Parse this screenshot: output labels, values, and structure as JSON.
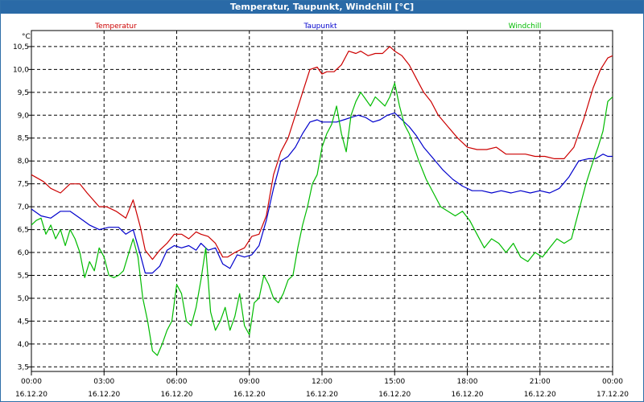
{
  "window": {
    "title": "Temperatur, Taupunkt, Windchill [°C]"
  },
  "chart_data": {
    "type": "line",
    "title": "Temperatur, Taupunkt, Windchill [°C]",
    "ylabel": "°C",
    "ylim": [
      3.4,
      10.85
    ],
    "xlim": [
      0,
      24
    ],
    "yticks": [
      "3.5",
      "4.0",
      "4.5",
      "5.0",
      "5.5",
      "6.0",
      "6.5",
      "7.0",
      "7.5",
      "8.0",
      "8.5",
      "9.0",
      "9.5",
      "10.0",
      "10.5"
    ],
    "xticks": [
      {
        "x": 0,
        "time": "00:00",
        "date": "16.12.20"
      },
      {
        "x": 3,
        "time": "03:00",
        "date": "16.12.20"
      },
      {
        "x": 6,
        "time": "06:00",
        "date": "16.12.20"
      },
      {
        "x": 9,
        "time": "09:00",
        "date": "16.12.20"
      },
      {
        "x": 12,
        "time": "12:00",
        "date": "16.12.20"
      },
      {
        "x": 15,
        "time": "15:00",
        "date": "16.12.20"
      },
      {
        "x": 18,
        "time": "18:00",
        "date": "16.12.20"
      },
      {
        "x": 21,
        "time": "21:00",
        "date": "16.12.20"
      },
      {
        "x": 24,
        "time": "00:00",
        "date": "17.12.20"
      }
    ],
    "grid": true,
    "series": [
      {
        "name": "Temperatur",
        "color": "#cc0000",
        "x": [
          0,
          0.5,
          0.8,
          1.2,
          1.6,
          2.0,
          2.3,
          2.8,
          3.1,
          3.5,
          3.9,
          4.2,
          4.5,
          4.7,
          5.0,
          5.3,
          5.6,
          5.9,
          6.2,
          6.5,
          6.8,
          7.0,
          7.3,
          7.6,
          7.9,
          8.1,
          8.4,
          8.8,
          9.1,
          9.4,
          9.7,
          10.0,
          10.3,
          10.6,
          10.9,
          11.2,
          11.5,
          11.8,
          12.0,
          12.2,
          12.5,
          12.8,
          13.1,
          13.4,
          13.6,
          13.9,
          14.2,
          14.5,
          14.8,
          15.0,
          15.3,
          15.6,
          15.9,
          16.2,
          16.5,
          16.8,
          17.2,
          17.6,
          18.0,
          18.4,
          18.8,
          19.2,
          19.6,
          20.0,
          20.4,
          20.8,
          21.2,
          21.6,
          22.0,
          22.4,
          22.8,
          23.2,
          23.5,
          23.8,
          24.0
        ],
        "values": [
          7.7,
          7.55,
          7.4,
          7.3,
          7.5,
          7.5,
          7.3,
          7.0,
          7.0,
          6.9,
          6.75,
          7.15,
          6.55,
          6.05,
          5.85,
          6.05,
          6.2,
          6.4,
          6.4,
          6.3,
          6.45,
          6.4,
          6.35,
          6.2,
          5.9,
          5.9,
          6.0,
          6.1,
          6.35,
          6.4,
          6.8,
          7.7,
          8.2,
          8.5,
          9.0,
          9.5,
          10.0,
          10.05,
          9.9,
          9.95,
          9.95,
          10.1,
          10.4,
          10.35,
          10.4,
          10.3,
          10.35,
          10.35,
          10.5,
          10.4,
          10.3,
          10.1,
          9.8,
          9.5,
          9.3,
          9.0,
          8.75,
          8.5,
          8.3,
          8.25,
          8.25,
          8.3,
          8.15,
          8.15,
          8.15,
          8.1,
          8.1,
          8.05,
          8.05,
          8.3,
          8.9,
          9.6,
          10.0,
          10.25,
          10.3
        ]
      },
      {
        "name": "Taupunkt",
        "color": "#0000cc",
        "x": [
          0,
          0.4,
          0.8,
          1.2,
          1.6,
          2.0,
          2.4,
          2.8,
          3.2,
          3.6,
          3.9,
          4.2,
          4.5,
          4.7,
          5.0,
          5.3,
          5.6,
          5.9,
          6.2,
          6.5,
          6.8,
          7.0,
          7.3,
          7.6,
          7.9,
          8.2,
          8.5,
          8.8,
          9.1,
          9.4,
          9.7,
          10.0,
          10.3,
          10.6,
          10.9,
          11.2,
          11.5,
          11.8,
          12.0,
          12.3,
          12.6,
          12.9,
          13.2,
          13.5,
          13.8,
          14.1,
          14.4,
          14.7,
          15.0,
          15.3,
          15.6,
          15.9,
          16.2,
          16.6,
          17.0,
          17.4,
          17.8,
          18.2,
          18.6,
          19.0,
          19.4,
          19.8,
          20.2,
          20.6,
          21.0,
          21.4,
          21.8,
          22.2,
          22.6,
          23.0,
          23.3,
          23.6,
          23.8,
          24.0
        ],
        "values": [
          6.95,
          6.8,
          6.75,
          6.9,
          6.9,
          6.75,
          6.6,
          6.5,
          6.55,
          6.55,
          6.4,
          6.5,
          5.95,
          5.55,
          5.55,
          5.7,
          6.05,
          6.15,
          6.1,
          6.15,
          6.05,
          6.2,
          6.05,
          6.1,
          5.75,
          5.65,
          5.95,
          5.9,
          5.95,
          6.15,
          6.7,
          7.4,
          8.0,
          8.1,
          8.3,
          8.6,
          8.85,
          8.9,
          8.85,
          8.85,
          8.85,
          8.9,
          8.95,
          9.0,
          8.95,
          8.85,
          8.9,
          9.0,
          9.05,
          8.9,
          8.75,
          8.55,
          8.3,
          8.05,
          7.8,
          7.6,
          7.45,
          7.35,
          7.35,
          7.3,
          7.35,
          7.3,
          7.35,
          7.3,
          7.35,
          7.3,
          7.4,
          7.65,
          8.0,
          8.05,
          8.05,
          8.15,
          8.1,
          8.1
        ]
      },
      {
        "name": "Windchill",
        "color": "#00bb00",
        "x": [
          0,
          0.2,
          0.4,
          0.6,
          0.8,
          1.0,
          1.2,
          1.4,
          1.6,
          1.8,
          2.0,
          2.2,
          2.4,
          2.6,
          2.8,
          3.0,
          3.2,
          3.4,
          3.6,
          3.8,
          4.0,
          4.2,
          4.4,
          4.6,
          4.8,
          5.0,
          5.2,
          5.4,
          5.6,
          5.8,
          6.0,
          6.2,
          6.4,
          6.6,
          6.8,
          7.0,
          7.2,
          7.4,
          7.6,
          7.8,
          8.0,
          8.2,
          8.4,
          8.6,
          8.8,
          9.0,
          9.2,
          9.4,
          9.6,
          9.8,
          10.0,
          10.2,
          10.4,
          10.6,
          10.8,
          11.0,
          11.2,
          11.4,
          11.6,
          11.8,
          12.0,
          12.2,
          12.4,
          12.6,
          12.8,
          13.0,
          13.2,
          13.4,
          13.6,
          13.8,
          14.0,
          14.2,
          14.4,
          14.6,
          14.8,
          15.0,
          15.2,
          15.4,
          15.6,
          15.8,
          16.0,
          16.3,
          16.6,
          16.9,
          17.2,
          17.5,
          17.8,
          18.1,
          18.4,
          18.7,
          19.0,
          19.3,
          19.6,
          19.9,
          20.2,
          20.5,
          20.8,
          21.1,
          21.4,
          21.7,
          22.0,
          22.3,
          22.6,
          22.9,
          23.2,
          23.4,
          23.6,
          23.8,
          24.0
        ],
        "values": [
          6.6,
          6.7,
          6.75,
          6.4,
          6.6,
          6.3,
          6.5,
          6.15,
          6.5,
          6.3,
          6.0,
          5.45,
          5.8,
          5.6,
          6.1,
          5.9,
          5.5,
          5.45,
          5.5,
          5.6,
          5.95,
          6.3,
          5.9,
          5.0,
          4.5,
          3.85,
          3.75,
          4.0,
          4.3,
          4.5,
          5.3,
          5.1,
          4.5,
          4.4,
          4.8,
          5.4,
          6.1,
          4.7,
          4.3,
          4.5,
          4.8,
          4.3,
          4.6,
          5.1,
          4.4,
          4.2,
          4.9,
          5.0,
          5.5,
          5.3,
          5.0,
          4.9,
          5.1,
          5.4,
          5.5,
          6.1,
          6.6,
          7.0,
          7.5,
          7.7,
          8.3,
          8.6,
          8.8,
          9.2,
          8.6,
          8.2,
          9.0,
          9.3,
          9.5,
          9.35,
          9.2,
          9.4,
          9.3,
          9.2,
          9.4,
          9.7,
          9.2,
          8.8,
          8.6,
          8.3,
          8.0,
          7.6,
          7.3,
          7.0,
          6.9,
          6.8,
          6.9,
          6.7,
          6.4,
          6.1,
          6.3,
          6.2,
          6.0,
          6.2,
          5.9,
          5.8,
          6.0,
          5.9,
          6.1,
          6.3,
          6.2,
          6.3,
          6.9,
          7.5,
          8.0,
          8.3,
          8.65,
          9.3,
          9.4
        ]
      }
    ]
  }
}
